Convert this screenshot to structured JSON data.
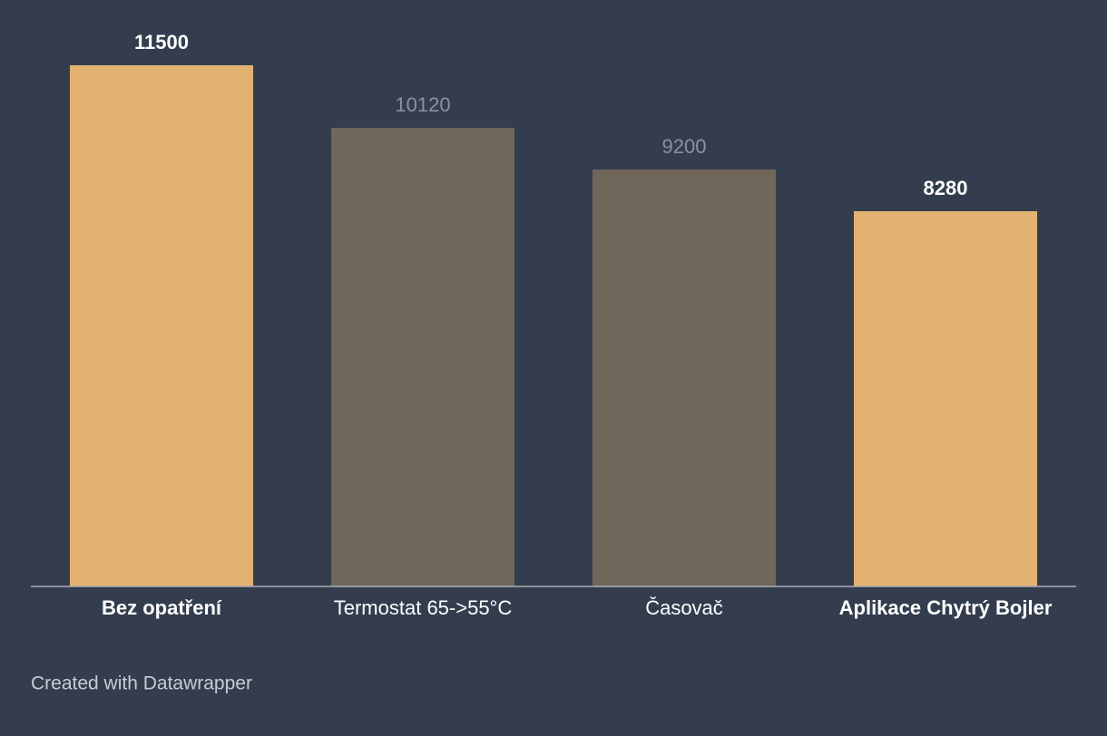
{
  "chart_data": {
    "type": "bar",
    "categories": [
      "Bez opatření",
      "Termostat 65->55°C",
      "Časovač",
      "Aplikace Chytrý Bojler"
    ],
    "values": [
      11500,
      10120,
      9200,
      8280
    ],
    "colors": [
      "#e2b273",
      "#70665a",
      "#70665a",
      "#e2b273"
    ],
    "highlighted": [
      true,
      false,
      false,
      true
    ],
    "ylim": [
      0,
      11500
    ],
    "footer": "Created with Datawrapper"
  }
}
